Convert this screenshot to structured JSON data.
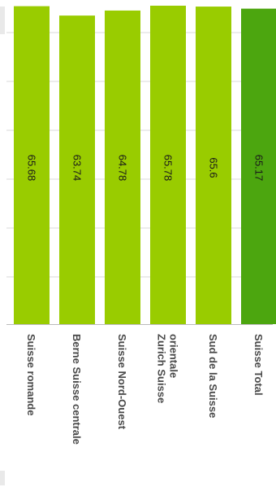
{
  "chart_data": {
    "type": "bar",
    "orientation": "vertical",
    "categories": [
      "Suisse romande",
      "Berne Suisse centrale",
      "Suisse Nord-Ouest",
      "Zurich Suisse orientale",
      "Sud de la Suisse",
      "Suisse Total"
    ],
    "category_label_lines": [
      [
        "Suisse romande"
      ],
      [
        "Berne Suisse centrale"
      ],
      [
        "Suisse Nord-Ouest"
      ],
      [
        "Zurich Suisse",
        "orientale"
      ],
      [
        "Sud de la Suisse"
      ],
      [
        "Suisse Total"
      ]
    ],
    "series": [
      {
        "values": [
          65.68,
          63.74,
          64.78,
          65.78,
          65.6,
          65.17
        ]
      }
    ],
    "value_labels": [
      "65.68",
      "63.74",
      "64.78",
      "65.78",
      "65.6",
      "65.17"
    ],
    "ylim": [
      0,
      65.78
    ],
    "grid": true,
    "text_rotation": "90deg clockwise",
    "colors": {
      "bar": "#99cc00",
      "total_bar": "#4ca60f",
      "grid": "#d8d8d8",
      "axis": "#bbbbbb",
      "label": "#4a4a4a",
      "value_label": "#1a1a1a"
    }
  }
}
